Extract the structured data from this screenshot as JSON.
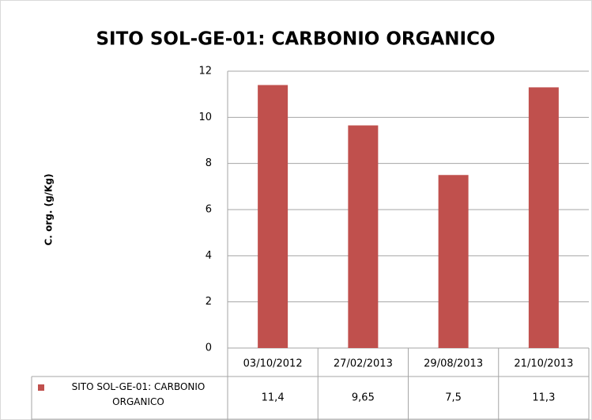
{
  "chart_data": {
    "type": "bar",
    "title": "SITO SOL-GE-01: CARBONIO ORGANICO",
    "y_label": "C. org. (g/Kg)",
    "categories": [
      "03/10/2012",
      "27/02/2013",
      "29/08/2013",
      "21/10/2013"
    ],
    "series": [
      {
        "name": "SITO SOL-GE-01: CARBONIO ORGANICO",
        "color": "#c0504d",
        "values": [
          11.4,
          9.65,
          7.5,
          11.3
        ],
        "value_labels": [
          "11,4",
          "9,65",
          "7,5",
          "11,3"
        ]
      }
    ],
    "ylim": [
      0,
      12
    ],
    "yticks": [
      0,
      2,
      4,
      6,
      8,
      10,
      12
    ],
    "grid": true
  }
}
